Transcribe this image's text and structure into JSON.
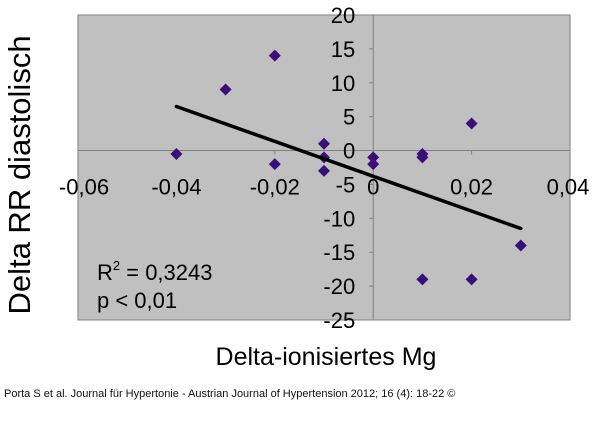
{
  "chart_data": {
    "type": "scatter",
    "title": "",
    "xlabel": "Delta-ionisiertes Mg",
    "ylabel": "Delta RR diastolisch",
    "xlim": [
      -0.06,
      0.04
    ],
    "ylim": [
      -25,
      20
    ],
    "x_ticks": [
      "-0,06",
      "-0,04",
      "-0,02",
      "0",
      "0,02",
      "0,04"
    ],
    "x_tick_values": [
      -0.06,
      -0.04,
      -0.02,
      0,
      0.02,
      0.04
    ],
    "y_ticks": [
      "20",
      "15",
      "10",
      "5",
      "0",
      "-5",
      "-10",
      "-15",
      "-20",
      "-25"
    ],
    "y_tick_values": [
      20,
      15,
      10,
      5,
      0,
      -5,
      -10,
      -15,
      -20,
      -25
    ],
    "points": [
      {
        "x": -0.04,
        "y": -0.5
      },
      {
        "x": -0.03,
        "y": 9
      },
      {
        "x": -0.02,
        "y": 14
      },
      {
        "x": -0.02,
        "y": -2
      },
      {
        "x": -0.01,
        "y": 1
      },
      {
        "x": -0.01,
        "y": -1
      },
      {
        "x": -0.01,
        "y": -3
      },
      {
        "x": 0,
        "y": -1
      },
      {
        "x": 0,
        "y": -2
      },
      {
        "x": 0.01,
        "y": -0.5
      },
      {
        "x": 0.01,
        "y": -1
      },
      {
        "x": 0.01,
        "y": -19
      },
      {
        "x": 0.02,
        "y": 4
      },
      {
        "x": 0.02,
        "y": -19
      },
      {
        "x": 0.03,
        "y": -14
      }
    ],
    "trendline": {
      "x": [
        -0.04,
        0.03
      ],
      "y": [
        6.5,
        -11.5
      ]
    },
    "annotation": {
      "r2_label": "R",
      "r2_exp": "2",
      "r2_value": " = 0,3243",
      "p_value": "p < 0,01"
    },
    "plot_background": "#c0c0c0",
    "gridlines": false,
    "marker_color": "#3b0f7a",
    "trendline_color": "#000000"
  },
  "caption": "Porta S et al. Journal für Hypertonie - Austrian Journal of Hypertension 2012; 16 (4): 18-22 ©"
}
